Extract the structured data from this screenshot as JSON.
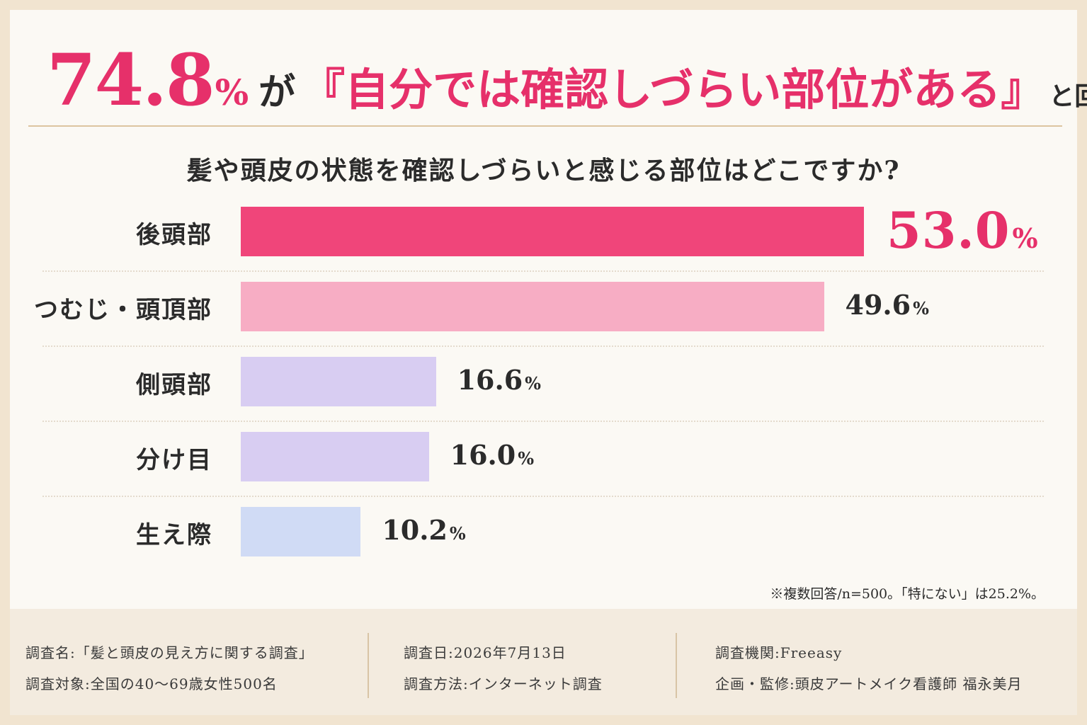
{
  "headline": {
    "pct_number": "74.8",
    "pct_sign": "%",
    "ga": "が",
    "quote": "『自分では確認しづらい部位がある』",
    "tail": "と回答"
  },
  "question": "髪や頭皮の状態を確認しづらいと感じる部位はどこですか?",
  "chart_data": {
    "type": "bar",
    "orientation": "horizontal",
    "title": "髪や頭皮の状態を確認しづらいと感じる部位はどこですか?",
    "categories": [
      "後頭部",
      "つむじ・頭頂部",
      "側頭部",
      "分け目",
      "生え際"
    ],
    "values": [
      53.0,
      49.6,
      16.6,
      16.0,
      10.2
    ],
    "value_labels": [
      "53.0",
      "49.6",
      "16.6",
      "16.0",
      "10.2"
    ],
    "unit": "%",
    "colors": [
      "#f0457a",
      "#f7adc4",
      "#d8cdf2",
      "#d8cdf2",
      "#d0dbf5"
    ],
    "grid": false,
    "legend": "none"
  },
  "note": "※複数回答/n=500。「特にない」は25.2%。",
  "footer": {
    "col1": [
      "調査名:「髪と頭皮の見え方に関する調査」",
      "調査対象:全国の40〜69歳女性500名"
    ],
    "col2": [
      "調査日:2026年7月13日",
      "調査方法:インターネット調査"
    ],
    "col3": [
      "調査機関:Freeasy",
      "企画・監修:頭皮アートメイク看護師 福永美月"
    ]
  },
  "colors": {
    "accent": "#e6306a",
    "background": "#fbf9f4",
    "frame": "#f1e4d0",
    "footer_bg": "#f3ebdf"
  }
}
